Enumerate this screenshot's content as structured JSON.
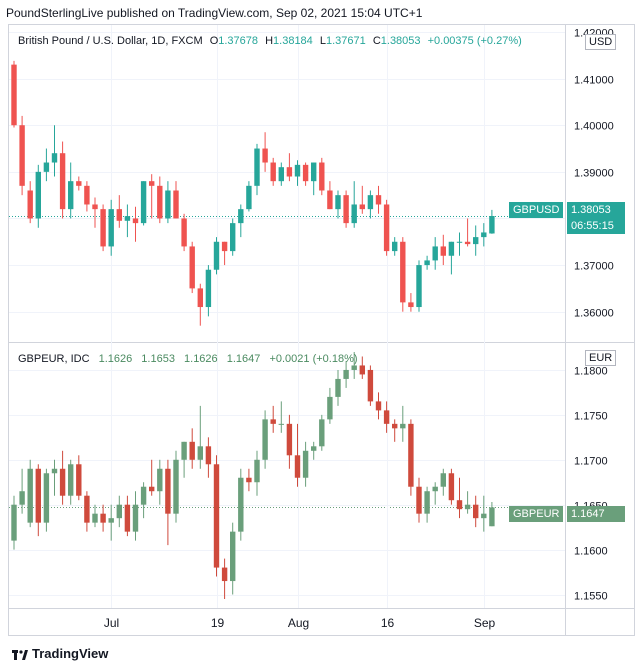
{
  "header": {
    "published": "PoundSterlingLive published on TradingView.com, Sep 02, 2021 15:04 UTC+1"
  },
  "footer": {
    "brand": "TradingView"
  },
  "colors": {
    "usd_up": "#26a69a",
    "usd_down": "#ef5350",
    "eur_up": "#6a9f7b",
    "eur_down": "#cf4a3c"
  },
  "chart_data": [
    {
      "type": "candlestick",
      "symbol_title": "British Pound / U.S. Dollar, 1D, FXCM",
      "ohlc_labels": {
        "o_key": "O",
        "o": "1.37678",
        "h_key": "H",
        "h": "1.38184",
        "l_key": "L",
        "l": "1.37671",
        "c_key": "C",
        "c": "1.38053",
        "change": "+0.00375 (+0.27%)"
      },
      "currency": "USD",
      "last_price": {
        "symbol": "GBPUSD",
        "value": "1.38053",
        "countdown": "06:55:15"
      },
      "ylim": [
        1.3535,
        1.4215
      ],
      "yticks": [
        "1.42000",
        "1.41000",
        "1.40000",
        "1.39000",
        "1.38000",
        "1.37000",
        "1.36000"
      ],
      "candles": [
        [
          1.413,
          1.4138,
          1.3995,
          1.4
        ],
        [
          1.4,
          1.402,
          1.385,
          1.387
        ],
        [
          1.386,
          1.388,
          1.379,
          1.38
        ],
        [
          1.38,
          1.3915,
          1.378,
          1.39
        ],
        [
          1.39,
          1.395,
          1.388,
          1.392
        ],
        [
          1.392,
          1.4,
          1.389,
          1.394
        ],
        [
          1.394,
          1.3965,
          1.38,
          1.382
        ],
        [
          1.382,
          1.392,
          1.38,
          1.388
        ],
        [
          1.388,
          1.389,
          1.386,
          1.387
        ],
        [
          1.387,
          1.388,
          1.3815,
          1.383
        ],
        [
          1.383,
          1.3845,
          1.378,
          1.382
        ],
        [
          1.382,
          1.383,
          1.373,
          1.374
        ],
        [
          1.374,
          1.384,
          1.372,
          1.382
        ],
        [
          1.382,
          1.385,
          1.378,
          1.3795
        ],
        [
          1.3795,
          1.383,
          1.376,
          1.3805
        ],
        [
          1.38,
          1.3825,
          1.375,
          1.379
        ],
        [
          1.379,
          1.388,
          1.3785,
          1.388
        ],
        [
          1.388,
          1.3895,
          1.38,
          1.387
        ],
        [
          1.387,
          1.389,
          1.379,
          1.38
        ],
        [
          1.38,
          1.388,
          1.379,
          1.386
        ],
        [
          1.386,
          1.388,
          1.38,
          1.38
        ],
        [
          1.38,
          1.381,
          1.373,
          1.374
        ],
        [
          1.374,
          1.375,
          1.364,
          1.365
        ],
        [
          1.365,
          1.366,
          1.357,
          1.361
        ],
        [
          1.361,
          1.37,
          1.359,
          1.369
        ],
        [
          1.369,
          1.376,
          1.368,
          1.375
        ],
        [
          1.375,
          1.375,
          1.37,
          1.373
        ],
        [
          1.373,
          1.38,
          1.372,
          1.379
        ],
        [
          1.379,
          1.383,
          1.376,
          1.382
        ],
        [
          1.382,
          1.388,
          1.3815,
          1.387
        ],
        [
          1.387,
          1.396,
          1.385,
          1.395
        ],
        [
          1.395,
          1.3985,
          1.39,
          1.392
        ],
        [
          1.392,
          1.393,
          1.387,
          1.388
        ],
        [
          1.388,
          1.392,
          1.387,
          1.391
        ],
        [
          1.391,
          1.394,
          1.388,
          1.389
        ],
        [
          1.389,
          1.3925,
          1.387,
          1.3915
        ],
        [
          1.3915,
          1.392,
          1.387,
          1.388
        ],
        [
          1.388,
          1.392,
          1.385,
          1.392
        ],
        [
          1.392,
          1.393,
          1.385,
          1.386
        ],
        [
          1.386,
          1.388,
          1.382,
          1.382
        ],
        [
          1.382,
          1.386,
          1.38,
          1.385
        ],
        [
          1.385,
          1.386,
          1.378,
          1.379
        ],
        [
          1.379,
          1.388,
          1.378,
          1.383
        ],
        [
          1.383,
          1.387,
          1.381,
          1.382
        ],
        [
          1.382,
          1.386,
          1.38,
          1.385
        ],
        [
          1.385,
          1.387,
          1.381,
          1.383
        ],
        [
          1.383,
          1.384,
          1.372,
          1.373
        ],
        [
          1.373,
          1.376,
          1.372,
          1.375
        ],
        [
          1.375,
          1.376,
          1.36,
          1.362
        ],
        [
          1.362,
          1.364,
          1.36,
          1.361
        ],
        [
          1.361,
          1.371,
          1.36,
          1.37
        ],
        [
          1.37,
          1.372,
          1.369,
          1.371
        ],
        [
          1.371,
          1.376,
          1.369,
          1.374
        ],
        [
          1.374,
          1.3765,
          1.37,
          1.372
        ],
        [
          1.372,
          1.375,
          1.368,
          1.375
        ],
        [
          1.375,
          1.377,
          1.372,
          1.375
        ],
        [
          1.375,
          1.38,
          1.374,
          1.3745
        ],
        [
          1.3745,
          1.3785,
          1.372,
          1.376
        ],
        [
          1.376,
          1.379,
          1.374,
          1.377
        ],
        [
          1.37678,
          1.38184,
          1.37671,
          1.38053
        ]
      ]
    },
    {
      "type": "candlestick",
      "symbol_title": "GBPEUR, IDC",
      "ohlc_labels": {
        "o": "1.1626",
        "h": "1.1653",
        "l": "1.1626",
        "c": "1.1647",
        "change": "+0.0021 (+0.18%)"
      },
      "currency": "EUR",
      "last_price": {
        "symbol": "GBPEUR",
        "value": "1.1647"
      },
      "ylim": [
        1.1535,
        1.183
      ],
      "yticks": [
        "1.1800",
        "1.1750",
        "1.1700",
        "1.1650",
        "1.1600",
        "1.1550"
      ],
      "x_labels": [
        {
          "i": 12,
          "t": "Jul"
        },
        {
          "i": 25,
          "t": "19"
        },
        {
          "i": 35,
          "t": "Aug"
        },
        {
          "i": 46,
          "t": "16"
        },
        {
          "i": 58,
          "t": "Sep"
        }
      ],
      "candles": [
        [
          1.161,
          1.166,
          1.16,
          1.165
        ],
        [
          1.165,
          1.169,
          1.164,
          1.1665
        ],
        [
          1.163,
          1.17,
          1.1625,
          1.169
        ],
        [
          1.169,
          1.1695,
          1.1615,
          1.163
        ],
        [
          1.163,
          1.169,
          1.162,
          1.1685
        ],
        [
          1.1685,
          1.17,
          1.166,
          1.169
        ],
        [
          1.169,
          1.171,
          1.165,
          1.166
        ],
        [
          1.166,
          1.17,
          1.165,
          1.1695
        ],
        [
          1.1695,
          1.1705,
          1.1655,
          1.166
        ],
        [
          1.166,
          1.1665,
          1.162,
          1.163
        ],
        [
          1.163,
          1.165,
          1.1625,
          1.164
        ],
        [
          1.164,
          1.165,
          1.162,
          1.163
        ],
        [
          1.163,
          1.165,
          1.161,
          1.1635
        ],
        [
          1.1635,
          1.166,
          1.1625,
          1.165
        ],
        [
          1.165,
          1.166,
          1.1615,
          1.162
        ],
        [
          1.162,
          1.1665,
          1.161,
          1.165
        ],
        [
          1.165,
          1.1675,
          1.1635,
          1.167
        ],
        [
          1.167,
          1.17,
          1.166,
          1.1665
        ],
        [
          1.1665,
          1.17,
          1.165,
          1.169
        ],
        [
          1.169,
          1.17,
          1.1605,
          1.164
        ],
        [
          1.164,
          1.171,
          1.163,
          1.17
        ],
        [
          1.17,
          1.172,
          1.168,
          1.172
        ],
        [
          1.172,
          1.1735,
          1.169,
          1.17
        ],
        [
          1.17,
          1.176,
          1.169,
          1.1715
        ],
        [
          1.1715,
          1.1725,
          1.168,
          1.1695
        ],
        [
          1.1695,
          1.1705,
          1.157,
          1.158
        ],
        [
          1.158,
          1.159,
          1.1545,
          1.1565
        ],
        [
          1.1565,
          1.163,
          1.155,
          1.162
        ],
        [
          1.162,
          1.169,
          1.161,
          1.168
        ],
        [
          1.168,
          1.169,
          1.1665,
          1.1675
        ],
        [
          1.1675,
          1.171,
          1.166,
          1.17
        ],
        [
          1.17,
          1.1755,
          1.169,
          1.1745
        ],
        [
          1.1745,
          1.176,
          1.173,
          1.174
        ],
        [
          1.174,
          1.1765,
          1.173,
          1.174
        ],
        [
          1.174,
          1.175,
          1.169,
          1.1705
        ],
        [
          1.1705,
          1.174,
          1.167,
          1.168
        ],
        [
          1.168,
          1.172,
          1.167,
          1.171
        ],
        [
          1.171,
          1.172,
          1.17,
          1.1715
        ],
        [
          1.1715,
          1.175,
          1.171,
          1.1745
        ],
        [
          1.1745,
          1.178,
          1.174,
          1.177
        ],
        [
          1.177,
          1.18,
          1.176,
          1.179
        ],
        [
          1.179,
          1.181,
          1.178,
          1.18
        ],
        [
          1.18,
          1.182,
          1.179,
          1.1805
        ],
        [
          1.1805,
          1.1815,
          1.179,
          1.1795
        ],
        [
          1.18,
          1.1805,
          1.176,
          1.1765
        ],
        [
          1.1765,
          1.1775,
          1.1745,
          1.1755
        ],
        [
          1.1755,
          1.1765,
          1.173,
          1.174
        ],
        [
          1.174,
          1.1745,
          1.172,
          1.1735
        ],
        [
          1.1735,
          1.176,
          1.172,
          1.174
        ],
        [
          1.174,
          1.1745,
          1.166,
          1.167
        ],
        [
          1.167,
          1.168,
          1.163,
          1.164
        ],
        [
          1.164,
          1.167,
          1.163,
          1.1665
        ],
        [
          1.1665,
          1.1675,
          1.165,
          1.167
        ],
        [
          1.167,
          1.169,
          1.166,
          1.1685
        ],
        [
          1.1685,
          1.169,
          1.165,
          1.1655
        ],
        [
          1.1655,
          1.168,
          1.1635,
          1.1645
        ],
        [
          1.1645,
          1.1665,
          1.164,
          1.165
        ],
        [
          1.165,
          1.166,
          1.1625,
          1.1635
        ],
        [
          1.1635,
          1.166,
          1.162,
          1.164
        ],
        [
          1.1626,
          1.1653,
          1.1626,
          1.1647
        ]
      ]
    }
  ]
}
